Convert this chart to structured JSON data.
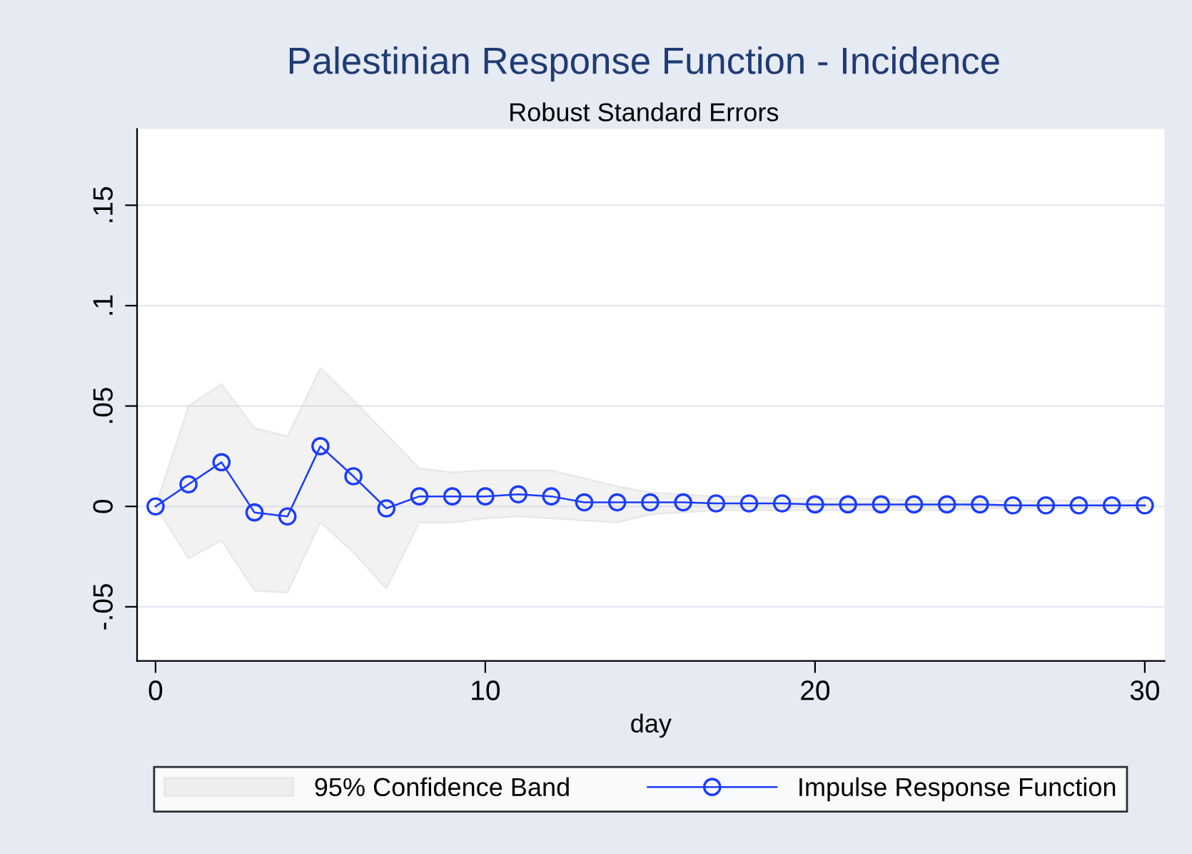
{
  "chart_data": {
    "type": "line",
    "title": "Palestinian Response Function - Incidence",
    "subtitle": "Robust Standard Errors",
    "xlabel": "day",
    "annotations": [
      "95% Confidence Band"
    ],
    "x": [
      0,
      1,
      2,
      3,
      4,
      5,
      6,
      7,
      8,
      9,
      10,
      11,
      12,
      13,
      14,
      15,
      16,
      17,
      18,
      19,
      20,
      21,
      22,
      23,
      24,
      25,
      26,
      27,
      28,
      29,
      30
    ],
    "series": [
      {
        "name": "Impulse Response Function",
        "color": "#1a3cff",
        "values": [
          0,
          0.011,
          0.022,
          -0.003,
          -0.005,
          0.03,
          0.015,
          -0.001,
          0.005,
          0.005,
          0.005,
          0.006,
          0.005,
          0.002,
          0.002,
          0.002,
          0.002,
          0.0015,
          0.0015,
          0.0015,
          0.001,
          0.001,
          0.001,
          0.001,
          0.001,
          0.001,
          0.0005,
          0.0005,
          0.0005,
          0.0005,
          0.0005
        ],
        "upper": [
          0,
          0.05,
          0.061,
          0.039,
          0.035,
          0.069,
          0.053,
          0.036,
          0.019,
          0.017,
          0.018,
          0.018,
          0.018,
          0.014,
          0.01,
          0.007,
          0.006,
          0.005,
          0.005,
          0.004,
          0.004,
          0.004,
          0.004,
          0.003,
          0.003,
          0.003,
          0.003,
          0.003,
          0.003,
          0.003,
          0.003
        ],
        "lower": [
          0,
          -0.026,
          -0.017,
          -0.042,
          -0.043,
          -0.008,
          -0.023,
          -0.041,
          -0.008,
          -0.008,
          -0.006,
          -0.005,
          -0.006,
          -0.007,
          -0.008,
          -0.004,
          -0.003,
          -0.002,
          -0.002,
          -0.002,
          -0.002,
          -0.002,
          -0.002,
          -0.002,
          -0.002,
          -0.001,
          -0.001,
          -0.001,
          -0.001,
          -0.001,
          -0.001
        ]
      }
    ],
    "xlim": [
      -0.56,
      30.6
    ],
    "ylim": [
      -0.077,
      0.188
    ],
    "xticks": [
      0,
      10,
      20,
      30
    ],
    "yticks": [
      {
        "value": -0.05,
        "label": "-.05"
      },
      {
        "value": 0,
        "label": "0"
      },
      {
        "value": 0.05,
        "label": ".05"
      },
      {
        "value": 0.1,
        "label": ".1"
      },
      {
        "value": 0.15,
        "label": ".15"
      }
    ],
    "grid": "y",
    "legend": "bottom",
    "marker": "circle",
    "line_style": "solid"
  }
}
